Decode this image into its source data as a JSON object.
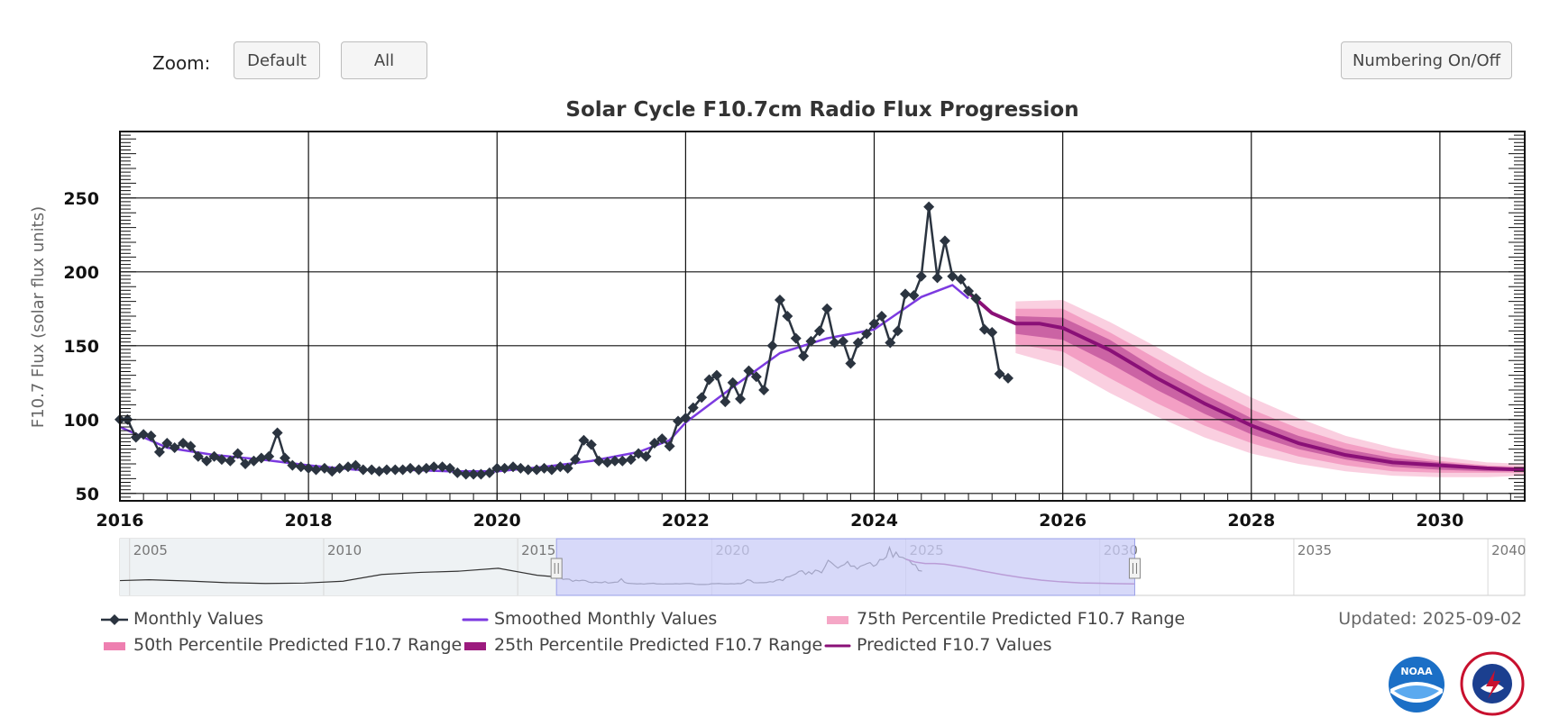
{
  "toolbar": {
    "zoom_label": "Zoom:",
    "default_label": "Default",
    "all_label": "All",
    "numbering_label": "Numbering On/Off"
  },
  "updated_text": "Updated: 2025-09-02",
  "colors": {
    "monthly": "#2b3440",
    "smoothed": "#7c3ae0",
    "p75": "#f5a7c6",
    "p50": "#ee7fb0",
    "p25": "#9c1b7e",
    "predicted": "#8a1077",
    "navigator_fill": "#c9ccf7"
  },
  "chart_data": {
    "type": "line",
    "title": "Solar Cycle F10.7cm Radio Flux Progression",
    "xlabel": "",
    "ylabel": "F10.7 Flux (solar flux units)",
    "xlim": [
      2016.0,
      2030.9
    ],
    "ylim": [
      45,
      295
    ],
    "x_ticks": [
      "2016",
      "2018",
      "2020",
      "2022",
      "2024",
      "2026",
      "2028",
      "2030"
    ],
    "y_ticks": [
      "50",
      "100",
      "150",
      "200",
      "250"
    ],
    "grid": true,
    "legend_position": "bottom",
    "series": [
      {
        "name": "Monthly Values",
        "x": [
          2016.0,
          2016.08,
          2016.17,
          2016.25,
          2016.33,
          2016.42,
          2016.5,
          2016.58,
          2016.67,
          2016.75,
          2016.83,
          2016.92,
          2017.0,
          2017.08,
          2017.17,
          2017.25,
          2017.33,
          2017.42,
          2017.5,
          2017.58,
          2017.67,
          2017.75,
          2017.83,
          2017.92,
          2018.0,
          2018.08,
          2018.17,
          2018.25,
          2018.33,
          2018.42,
          2018.5,
          2018.58,
          2018.67,
          2018.75,
          2018.83,
          2018.92,
          2019.0,
          2019.08,
          2019.17,
          2019.25,
          2019.33,
          2019.42,
          2019.5,
          2019.58,
          2019.67,
          2019.75,
          2019.83,
          2019.92,
          2020.0,
          2020.08,
          2020.17,
          2020.25,
          2020.33,
          2020.42,
          2020.5,
          2020.58,
          2020.67,
          2020.75,
          2020.83,
          2020.92,
          2021.0,
          2021.08,
          2021.17,
          2021.25,
          2021.33,
          2021.42,
          2021.5,
          2021.58,
          2021.67,
          2021.75,
          2021.83,
          2021.92,
          2022.0,
          2022.08,
          2022.17,
          2022.25,
          2022.33,
          2022.42,
          2022.5,
          2022.58,
          2022.67,
          2022.75,
          2022.83,
          2022.92,
          2023.0,
          2023.08,
          2023.17,
          2023.25,
          2023.33,
          2023.42,
          2023.5,
          2023.58,
          2023.67,
          2023.75,
          2023.83,
          2023.92,
          2024.0,
          2024.08,
          2024.17,
          2024.25,
          2024.33,
          2024.42,
          2024.5,
          2024.58,
          2024.67,
          2024.75,
          2024.83,
          2024.92,
          2025.0,
          2025.08,
          2025.17,
          2025.25,
          2025.33,
          2025.42
        ],
        "values": [
          100,
          100,
          88,
          90,
          89,
          78,
          84,
          81,
          84,
          82,
          75,
          72,
          75,
          73,
          72,
          77,
          70,
          72,
          74,
          75,
          91,
          74,
          69,
          68,
          67,
          66,
          67,
          65,
          67,
          68,
          69,
          66,
          66,
          65,
          66,
          66,
          66,
          67,
          66,
          67,
          68,
          68,
          67,
          64,
          63,
          63,
          63,
          64,
          67,
          67,
          68,
          67,
          66,
          66,
          67,
          66,
          68,
          67,
          73,
          86,
          83,
          72,
          71,
          72,
          72,
          73,
          77,
          75,
          84,
          87,
          82,
          99,
          101,
          108,
          115,
          127,
          130,
          112,
          125,
          114,
          133,
          129,
          120,
          150,
          181,
          170,
          155,
          143,
          153,
          160,
          175,
          152,
          153,
          138,
          152,
          158,
          165,
          170,
          152,
          160,
          185,
          184,
          197,
          244,
          196,
          221,
          197,
          195,
          187,
          182,
          161,
          159,
          131,
          128
        ]
      },
      {
        "name": "Smoothed Monthly Values",
        "x": [
          2016.0,
          2016.5,
          2017.0,
          2017.5,
          2018.0,
          2018.5,
          2019.0,
          2019.5,
          2020.0,
          2020.5,
          2021.0,
          2021.5,
          2021.83,
          2022.0,
          2022.5,
          2023.0,
          2023.5,
          2024.0,
          2024.5,
          2024.83,
          2025.0
        ],
        "values": [
          95,
          81,
          76,
          73,
          69,
          66,
          66,
          65,
          65,
          68,
          72,
          78,
          86,
          98,
          122,
          145,
          155,
          161,
          183,
          191,
          182
        ]
      },
      {
        "name": "Predicted F10.7 Values",
        "x": [
          2025.0,
          2025.25,
          2025.5,
          2025.75,
          2026.0,
          2026.5,
          2027.0,
          2027.5,
          2028.0,
          2028.5,
          2029.0,
          2029.5,
          2030.0,
          2030.5,
          2030.9
        ],
        "values": [
          186,
          172,
          165,
          165,
          162,
          147,
          128,
          111,
          96,
          84,
          76,
          71,
          69,
          67,
          66
        ]
      },
      {
        "name": "75th Percentile Predicted F10.7 Range",
        "x": [
          2025.5,
          2026.0,
          2026.5,
          2027.0,
          2027.5,
          2028.0,
          2028.5,
          2029.0,
          2029.5,
          2030.0,
          2030.5,
          2030.9
        ],
        "low": [
          145,
          136,
          118,
          102,
          88,
          77,
          70,
          65,
          62,
          61,
          61,
          62
        ],
        "high": [
          180,
          181,
          166,
          149,
          131,
          115,
          101,
          89,
          81,
          75,
          71,
          70
        ]
      },
      {
        "name": "50th Percentile Predicted F10.7 Range",
        "x": [
          2025.5,
          2026.0,
          2026.5,
          2027.0,
          2027.5,
          2028.0,
          2028.5,
          2029.0,
          2029.5,
          2030.0,
          2030.5,
          2030.9
        ],
        "low": [
          151,
          146,
          128,
          111,
          96,
          84,
          75,
          69,
          65,
          64,
          64,
          64
        ],
        "high": [
          175,
          175,
          159,
          141,
          123,
          107,
          94,
          84,
          77,
          72,
          69,
          68
        ]
      },
      {
        "name": "25th Percentile Predicted F10.7 Range",
        "x": [
          2025.5,
          2026.0,
          2026.5,
          2027.0,
          2027.5,
          2028.0,
          2028.5,
          2029.0,
          2029.5,
          2030.0,
          2030.5,
          2030.9
        ],
        "low": [
          158,
          154,
          138,
          120,
          104,
          90,
          80,
          73,
          68,
          66,
          65,
          65
        ],
        "high": [
          170,
          169,
          154,
          134,
          117,
          101,
          89,
          80,
          74,
          71,
          68,
          67
        ]
      }
    ],
    "navigator": {
      "x_ticks": [
        "2005",
        "2010",
        "2015",
        "2020",
        "2025",
        "2030",
        "2035",
        "2040"
      ],
      "range": [
        2004.75,
        2040.95
      ],
      "selected": [
        2016.0,
        2030.9
      ]
    }
  },
  "legend": [
    {
      "label": "Monthly Values",
      "kind": "monthly"
    },
    {
      "label": "Smoothed Monthly Values",
      "kind": "smoothed"
    },
    {
      "label": "75th Percentile Predicted F10.7 Range",
      "kind": "p75"
    },
    {
      "label": "50th Percentile Predicted F10.7 Range",
      "kind": "p50"
    },
    {
      "label": "25th Percentile Predicted F10.7 Range",
      "kind": "p25"
    },
    {
      "label": "Predicted F10.7 Values",
      "kind": "predicted"
    }
  ],
  "logos": {
    "noaa_text": "NOAA",
    "nws_text": "NATIONAL WEATHER SERVICE"
  }
}
